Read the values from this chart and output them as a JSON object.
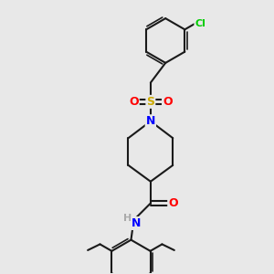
{
  "bg_color": "#e8e8e8",
  "bond_color": "#1a1a1a",
  "bond_width": 1.5,
  "atom_colors": {
    "N": "#0000ff",
    "O": "#ff0000",
    "S": "#ccaa00",
    "Cl": "#00cc00",
    "C": "#1a1a1a",
    "H": "#aaaaaa"
  },
  "font_size": 8.5,
  "xlim": [
    0,
    10
  ],
  "ylim": [
    0,
    10
  ]
}
